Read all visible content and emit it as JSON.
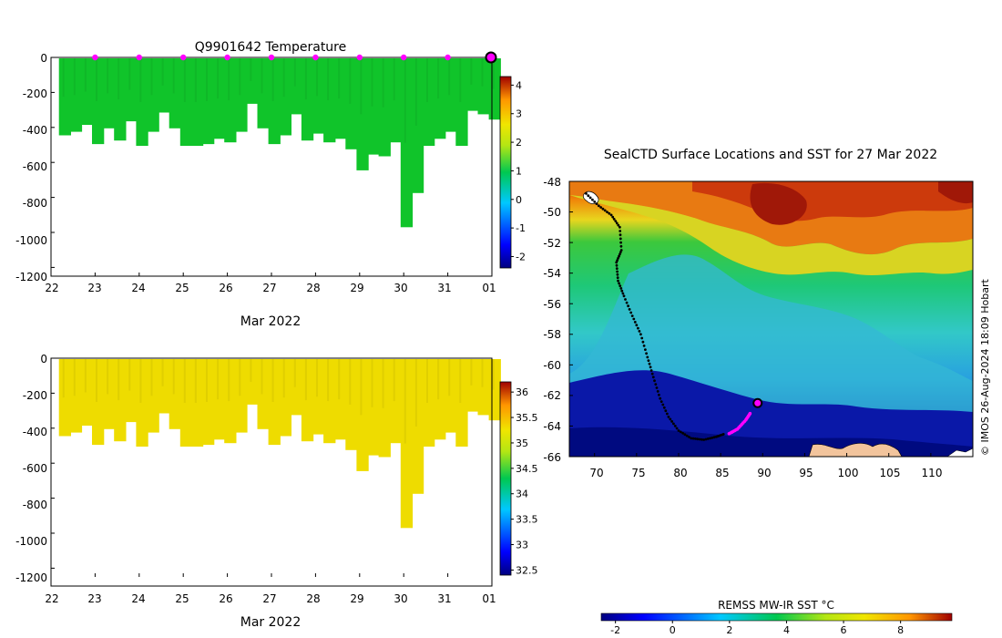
{
  "chart_data": [
    {
      "type": "heatmap",
      "title": "Q9901642  Temperature",
      "xlabel": "Mar 2022",
      "x_tick_labels": [
        "22",
        "23",
        "24",
        "25",
        "26",
        "27",
        "28",
        "29",
        "30",
        "31",
        "01"
      ],
      "x_range": [
        22,
        32
      ],
      "y_tick_labels": [
        "0",
        "-200",
        "-400",
        "-600",
        "-800",
        "-1000",
        "-1200"
      ],
      "y_ticks": [
        0,
        -200,
        -400,
        -600,
        -800,
        -1000,
        -1200
      ],
      "ylim": [
        -1250,
        0
      ],
      "colorbar_tick_labels": [
        "4",
        "3",
        "2",
        "1",
        "0",
        "-1",
        "-2"
      ],
      "colorbar_ticks": [
        4,
        3,
        2,
        1,
        0,
        -1,
        -2
      ],
      "colorbar_range": [
        -2.4,
        4.3
      ],
      "profile_days": [
        22.2,
        22.45,
        22.7,
        22.95,
        23.2,
        23.45,
        23.7,
        23.95,
        24.2,
        24.45,
        24.7,
        24.95,
        25.2,
        25.45,
        25.7,
        25.95,
        26.2,
        26.45,
        26.7,
        26.95,
        27.2,
        27.45,
        27.7,
        27.95,
        28.2,
        28.45,
        28.7,
        28.95,
        29.2,
        29.45,
        29.7,
        29.95,
        30.2,
        30.45,
        30.7,
        30.95,
        31.2,
        31.45,
        31.7,
        31.95
      ],
      "profile_max_depth": [
        440,
        420,
        380,
        490,
        400,
        470,
        360,
        500,
        420,
        310,
        400,
        500,
        500,
        490,
        460,
        480,
        420,
        260,
        400,
        490,
        440,
        320,
        470,
        430,
        480,
        460,
        520,
        640,
        550,
        560,
        480,
        965,
        770,
        500,
        460,
        420,
        500,
        300,
        320,
        350
      ],
      "surface_day_markers": [
        23,
        24,
        25,
        26,
        27,
        28,
        29,
        30,
        31
      ],
      "current_marker_day": 32
    },
    {
      "type": "heatmap",
      "title": "",
      "xlabel": "Mar 2022",
      "x_tick_labels": [
        "22",
        "23",
        "24",
        "25",
        "26",
        "27",
        "28",
        "29",
        "30",
        "31",
        "01"
      ],
      "x_range": [
        22,
        32
      ],
      "y_tick_labels": [
        "0",
        "-200",
        "-400",
        "-600",
        "-800",
        "-1000",
        "-1200"
      ],
      "y_ticks": [
        0,
        -200,
        -400,
        -600,
        -800,
        -1000,
        -1200
      ],
      "ylim": [
        -1250,
        0
      ],
      "colorbar_tick_labels": [
        "36",
        "35.5",
        "35",
        "34.5",
        "34",
        "33.5",
        "33",
        "32.5"
      ],
      "colorbar_ticks": [
        36,
        35.5,
        35,
        34.5,
        34,
        33.5,
        33,
        32.5
      ],
      "colorbar_range": [
        32.4,
        36.2
      ]
    },
    {
      "type": "heatmap",
      "title": "SealCTD Surface Locations and SST for 27 Mar 2022",
      "x_tick_labels": [
        "70",
        "75",
        "80",
        "85",
        "90",
        "95",
        "100",
        "105",
        "110"
      ],
      "x_ticks": [
        70,
        75,
        80,
        85,
        90,
        95,
        100,
        105,
        110
      ],
      "x_range": [
        67,
        115
      ],
      "y_tick_labels": [
        "-48",
        "-50",
        "-52",
        "-54",
        "-56",
        "-58",
        "-60",
        "-62",
        "-64",
        "-66"
      ],
      "y_ticks": [
        -48,
        -50,
        -52,
        -54,
        -56,
        -58,
        -60,
        -62,
        -64,
        -66
      ],
      "y_range": [
        -66,
        -48
      ],
      "track_black": [
        [
          69,
          -48.8
        ],
        [
          70.5,
          -49.6
        ],
        [
          72,
          -50.2
        ],
        [
          73,
          -51
        ],
        [
          73.2,
          -52.5
        ],
        [
          72.6,
          -53.3
        ],
        [
          72.8,
          -54.5
        ],
        [
          73.5,
          -55.5
        ],
        [
          74.5,
          -56.8
        ],
        [
          75.5,
          -58
        ],
        [
          76.3,
          -59.5
        ],
        [
          77,
          -60.8
        ],
        [
          77.8,
          -62.2
        ],
        [
          78.8,
          -63.4
        ],
        [
          80,
          -64.3
        ],
        [
          81.5,
          -64.8
        ],
        [
          83,
          -64.9
        ],
        [
          84.5,
          -64.7
        ],
        [
          85.5,
          -64.5
        ]
      ],
      "track_magenta": [
        [
          86,
          -64.5
        ],
        [
          87,
          -64.2
        ],
        [
          88,
          -63.6
        ],
        [
          88.6,
          -63.1
        ]
      ],
      "current_location": [
        89.4,
        -62.5
      ],
      "colorbar_label": "REMSS MW-IR SST °C",
      "colorbar_tick_labels": [
        "-2",
        "0",
        "2",
        "4",
        "6",
        "8"
      ],
      "colorbar_ticks": [
        -2,
        0,
        2,
        4,
        6,
        8
      ],
      "colorbar_range": [
        -2.5,
        9.8
      ]
    }
  ],
  "credit": "© IMOS 26-Aug-2024 18:09 Hobart"
}
